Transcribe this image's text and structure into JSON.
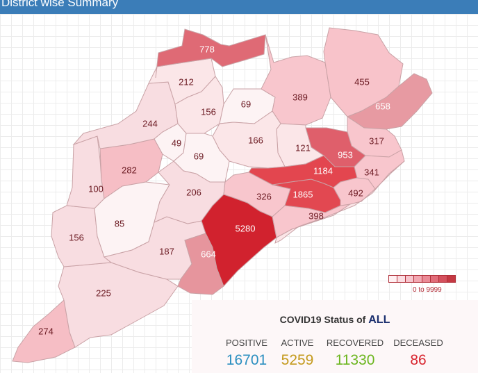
{
  "header": {
    "title": "District wise Summary"
  },
  "legend": {
    "range_label": "0 to 9999",
    "colors": [
      "#fff0f2",
      "#fbdde2",
      "#f7c4cc",
      "#f2a7b1",
      "#ea8a96",
      "#e16c79",
      "#d4505d",
      "#c43842"
    ]
  },
  "districts": [
    {
      "id": "d778",
      "value": "778",
      "color": "#df6a75",
      "text": "#ffffff"
    },
    {
      "id": "d212",
      "value": "212",
      "color": "#fbe6e8",
      "text": "#6b1a22"
    },
    {
      "id": "d156n",
      "value": "156",
      "color": "#fbe6e8",
      "text": "#6b1a22"
    },
    {
      "id": "d69n",
      "value": "69",
      "color": "#fdf3f4",
      "text": "#6b1a22"
    },
    {
      "id": "d389",
      "value": "389",
      "color": "#f8c6cd",
      "text": "#6b1a22"
    },
    {
      "id": "d455",
      "value": "455",
      "color": "#f8c3ca",
      "text": "#6b1a22"
    },
    {
      "id": "d658",
      "value": "658",
      "color": "#e79aa2",
      "text": "#ffffff"
    },
    {
      "id": "d244",
      "value": "244",
      "color": "#f8dde1",
      "text": "#6b1a22"
    },
    {
      "id": "d49",
      "value": "49",
      "color": "#fdf3f4",
      "text": "#6b1a22"
    },
    {
      "id": "d166",
      "value": "166",
      "color": "#fbe6e8",
      "text": "#6b1a22"
    },
    {
      "id": "d121",
      "value": "121",
      "color": "#fbe6e8",
      "text": "#6b1a22"
    },
    {
      "id": "d953",
      "value": "953",
      "color": "#df5f6b",
      "text": "#ffffff"
    },
    {
      "id": "d317",
      "value": "317",
      "color": "#f8c6cd",
      "text": "#6b1a22"
    },
    {
      "id": "d282",
      "value": "282",
      "color": "#f6bec5",
      "text": "#6b1a22"
    },
    {
      "id": "d69c",
      "value": "69",
      "color": "#fdf3f4",
      "text": "#6b1a22"
    },
    {
      "id": "d1184",
      "value": "1184",
      "color": "#e3464f",
      "text": "#ffffff"
    },
    {
      "id": "d341",
      "value": "341",
      "color": "#f8c6cd",
      "text": "#6b1a22"
    },
    {
      "id": "d100",
      "value": "100",
      "color": "#f8dde1",
      "text": "#6b1a22"
    },
    {
      "id": "d206",
      "value": "206",
      "color": "#f8dde1",
      "text": "#6b1a22"
    },
    {
      "id": "d326",
      "value": "326",
      "color": "#f8c6cd",
      "text": "#6b1a22"
    },
    {
      "id": "d1865",
      "value": "1865",
      "color": "#e24851",
      "text": "#ffffff"
    },
    {
      "id": "d492",
      "value": "492",
      "color": "#f8c6cd",
      "text": "#6b1a22"
    },
    {
      "id": "d85",
      "value": "85",
      "color": "#fdf3f4",
      "text": "#6b1a22"
    },
    {
      "id": "d156s",
      "value": "156",
      "color": "#f8dde1",
      "text": "#6b1a22"
    },
    {
      "id": "d5280",
      "value": "5280",
      "color": "#d1222e",
      "text": "#ffffff"
    },
    {
      "id": "d398",
      "value": "398",
      "color": "#f8c6cd",
      "text": "#6b1a22"
    },
    {
      "id": "d187",
      "value": "187",
      "color": "#f8dde1",
      "text": "#6b1a22"
    },
    {
      "id": "d664",
      "value": "664",
      "color": "#e6959d",
      "text": "#ffffff"
    },
    {
      "id": "d225",
      "value": "225",
      "color": "#f8dde1",
      "text": "#6b1a22"
    },
    {
      "id": "d274",
      "value": "274",
      "color": "#f6bec5",
      "text": "#6b1a22"
    }
  ],
  "status": {
    "title": "COVID19 Status of",
    "selection": "ALL",
    "positive": {
      "label": "POSITIVE",
      "value": "16701",
      "color": "#2b8fc0"
    },
    "active": {
      "label": "ACTIVE",
      "value": "5259",
      "color": "#c49a1c"
    },
    "recovered": {
      "label": "RECOVERED",
      "value": "11330",
      "color": "#6cb61f"
    },
    "deceased": {
      "label": "DECEASED",
      "value": "86",
      "color": "#d8252f"
    }
  }
}
